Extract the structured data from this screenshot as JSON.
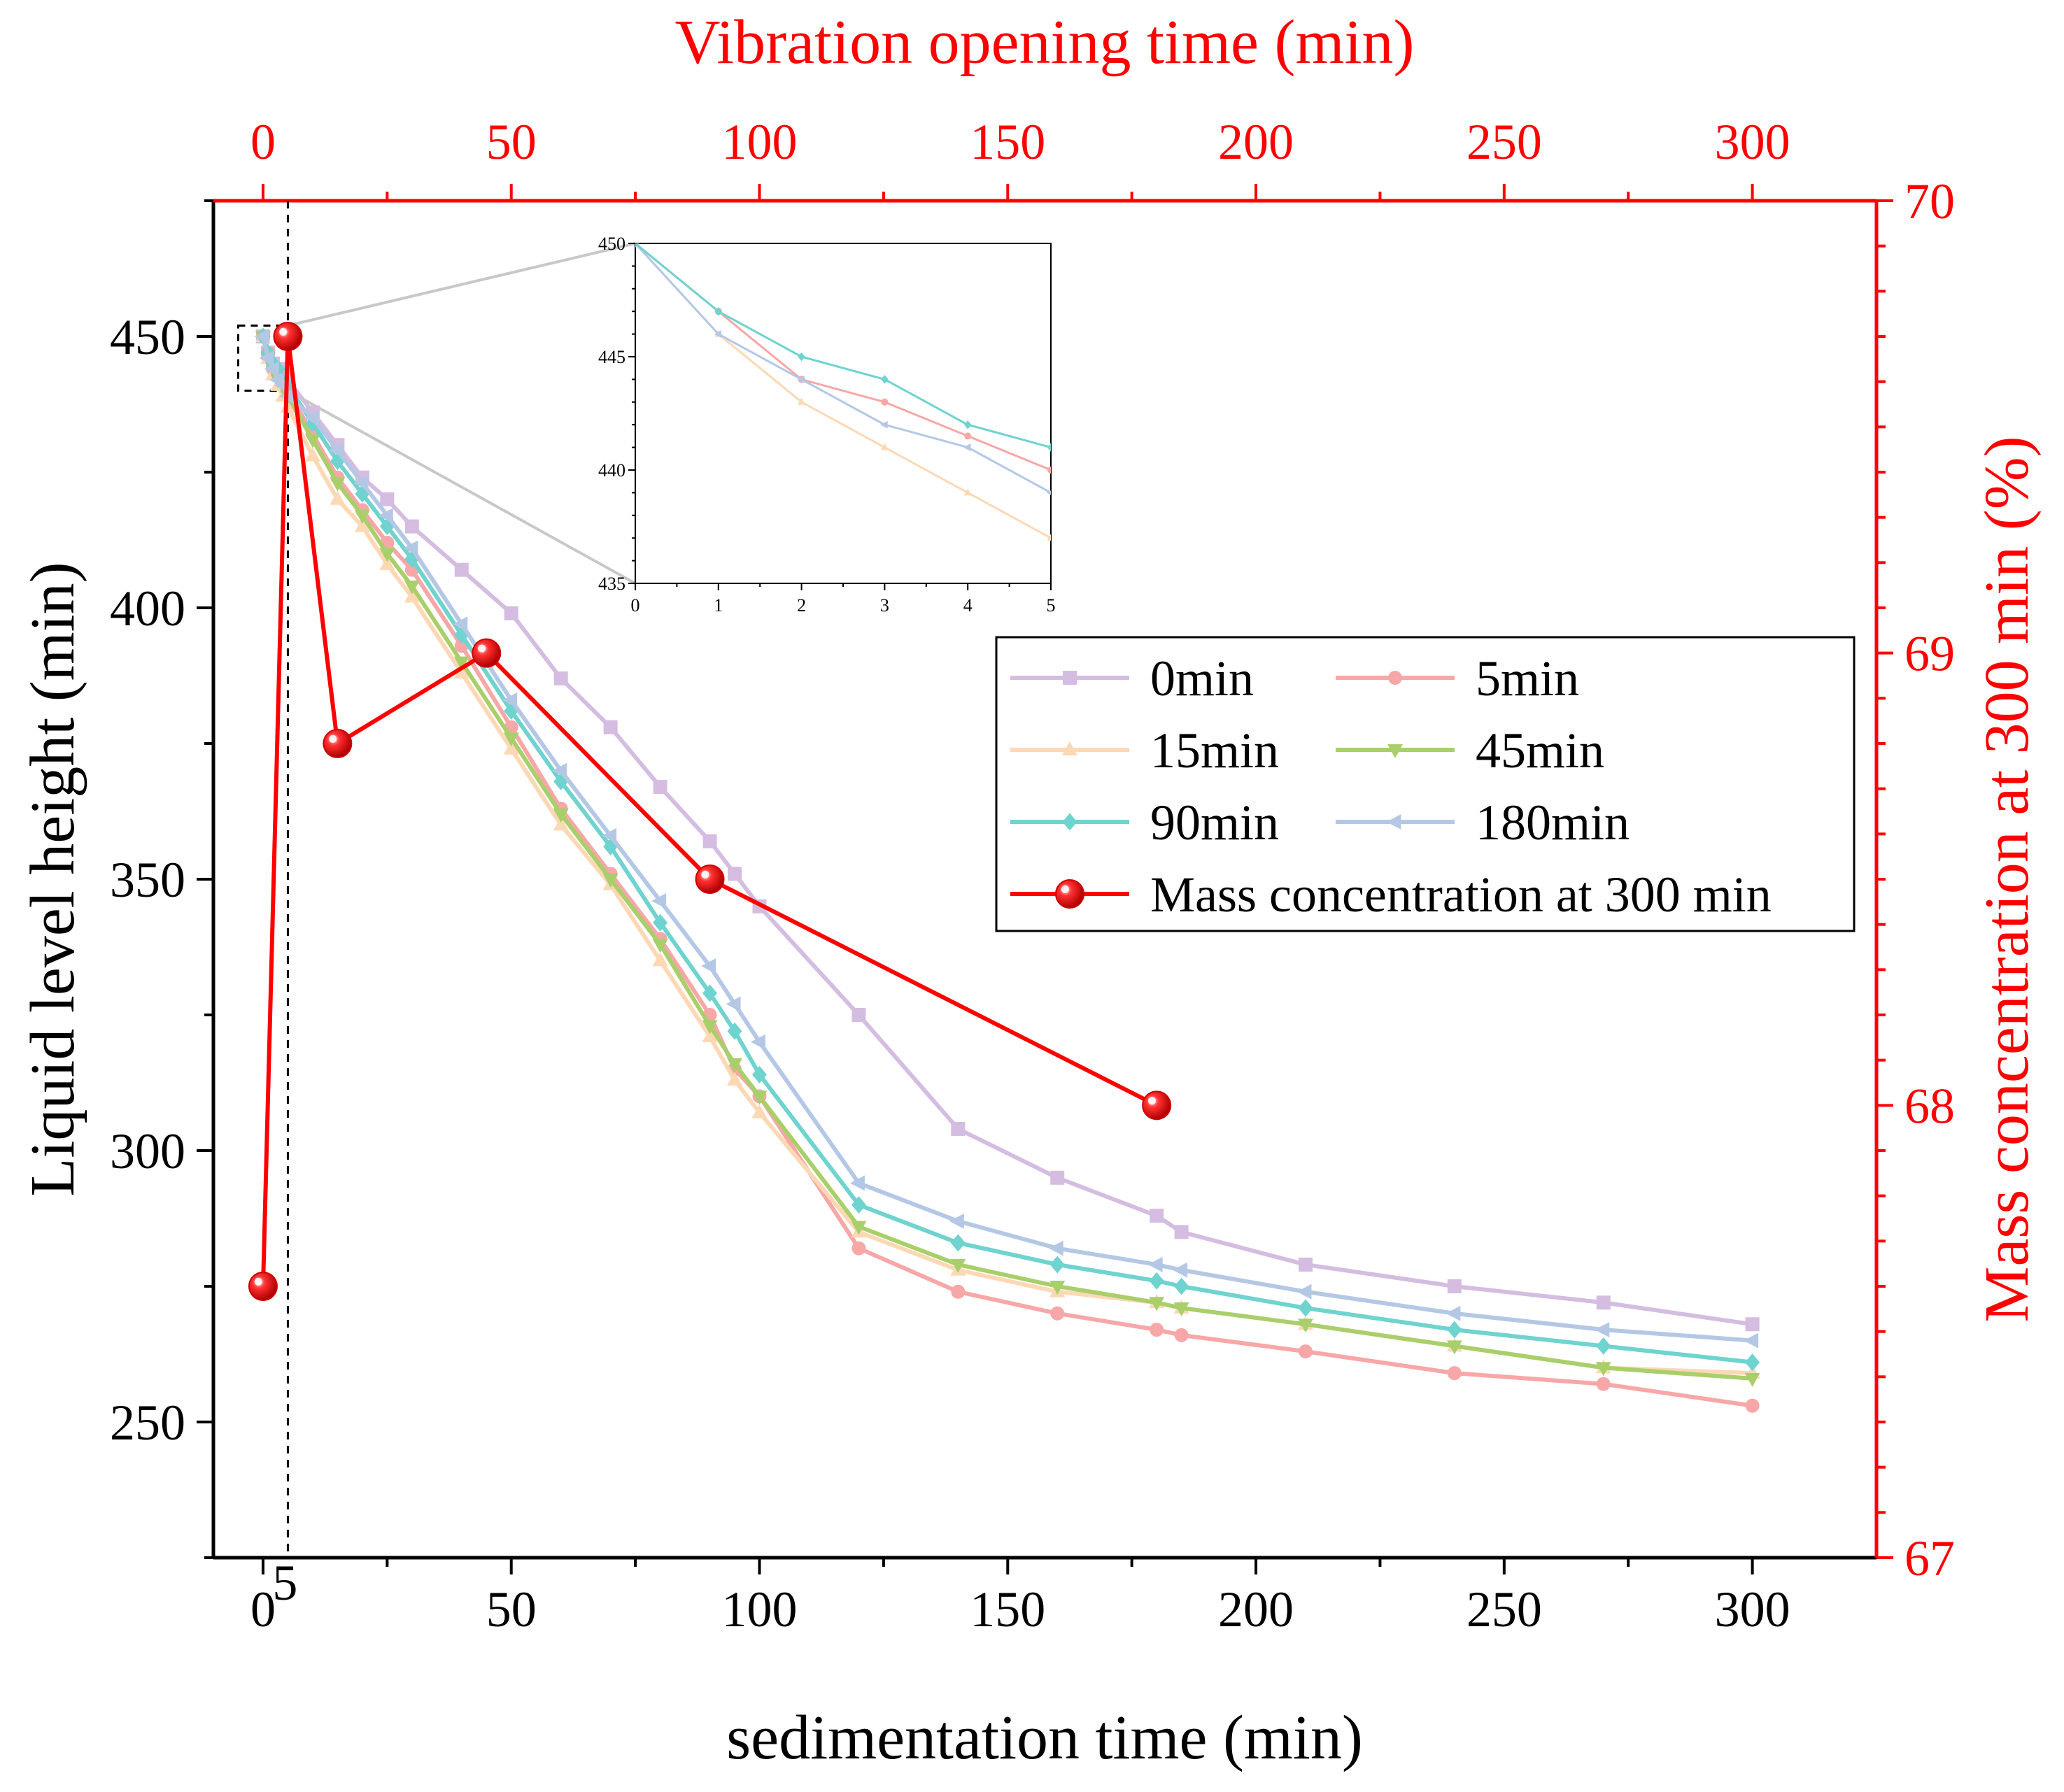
{
  "chart_data": {
    "type": "line",
    "colors": {
      "axis_black": "#000000",
      "axis_red": "#ff0000",
      "zoom_lines": "#c8c8c8",
      "0min": "#d4bde0",
      "5min": "#f7a7a7",
      "15min": "#fdd8b5",
      "45min": "#a9cf6b",
      "90min": "#6fd3cf",
      "180min": "#b4c8e6",
      "mass": "#ff0000"
    },
    "x_axis": {
      "label": "sedimentation time (min)",
      "range": [
        -10,
        325
      ],
      "ticks": [
        0,
        50,
        100,
        150,
        200,
        250,
        300
      ],
      "tick_labels": [
        "0",
        "50",
        "100",
        "150",
        "200",
        "250",
        "300"
      ],
      "extra_tick_label": "5",
      "extra_tick_value": 5,
      "dashed_line_at": 5
    },
    "y_axis_left": {
      "label": "Liquid level height (min)",
      "range": [
        225,
        475
      ],
      "ticks": [
        250,
        300,
        350,
        400,
        450
      ],
      "tick_labels": [
        "250",
        "300",
        "350",
        "400",
        "450"
      ]
    },
    "x_axis_top": {
      "label": "Vibration opening time (min)",
      "range": [
        -10,
        325
      ],
      "ticks": [
        0,
        50,
        100,
        150,
        200,
        250,
        300
      ],
      "tick_labels": [
        "0",
        "50",
        "100",
        "150",
        "200",
        "250",
        "300"
      ]
    },
    "y_axis_right": {
      "label": "Mass concentration at 300 min (%)",
      "range": [
        67,
        70
      ],
      "ticks": [
        67,
        68,
        69,
        70
      ],
      "tick_labels": [
        "67",
        "68",
        "69",
        "70"
      ]
    },
    "zoom_box": {
      "x_range": [
        -5,
        5
      ],
      "y_range": [
        440,
        452
      ]
    },
    "series": [
      {
        "name": "0min",
        "key": "0min",
        "marker": "square",
        "x": [
          0,
          1,
          2,
          3,
          4,
          5,
          10,
          15,
          20,
          25,
          30,
          40,
          50,
          60,
          70,
          80,
          90,
          95,
          100,
          120,
          140,
          160,
          180,
          185,
          210,
          240,
          270,
          300
        ],
        "y": [
          450,
          447,
          445,
          444,
          443,
          442,
          436,
          430,
          424,
          420,
          415,
          407,
          399,
          387,
          378,
          367,
          357,
          351,
          345,
          325,
          304,
          295,
          288,
          285,
          279,
          275,
          272,
          268
        ]
      },
      {
        "name": "5min",
        "key": "5min",
        "marker": "circle",
        "x": [
          0,
          1,
          2,
          3,
          4,
          5,
          10,
          15,
          20,
          25,
          30,
          40,
          50,
          60,
          70,
          80,
          90,
          95,
          100,
          120,
          140,
          160,
          180,
          185,
          210,
          240,
          270,
          300
        ],
        "y": [
          450,
          447,
          444,
          443,
          441.5,
          440,
          432,
          424,
          418,
          412,
          407,
          393,
          378,
          363,
          351,
          339,
          325,
          315,
          310,
          282,
          274,
          270,
          267,
          266,
          263,
          259,
          257,
          253
        ]
      },
      {
        "name": "15min",
        "key": "15min",
        "marker": "triangle-up",
        "x": [
          0,
          1,
          2,
          3,
          4,
          5,
          10,
          15,
          20,
          25,
          30,
          40,
          50,
          60,
          70,
          80,
          90,
          95,
          100,
          120,
          140,
          160,
          180,
          185,
          210,
          240,
          270,
          300
        ],
        "y": [
          450,
          446,
          443,
          441,
          439,
          437,
          428,
          420,
          415,
          408,
          402,
          388,
          374,
          360,
          349,
          335,
          321,
          313,
          307,
          285,
          278,
          274,
          272,
          271,
          268,
          264,
          260,
          259
        ]
      },
      {
        "name": "45min",
        "key": "45min",
        "marker": "triangle-down",
        "x": [
          0,
          1,
          2,
          3,
          4,
          5,
          10,
          15,
          20,
          25,
          30,
          40,
          50,
          60,
          70,
          80,
          90,
          95,
          100,
          120,
          140,
          160,
          180,
          185,
          210,
          240,
          270,
          300
        ],
        "y": [
          450,
          446,
          444,
          442,
          441,
          439,
          431,
          423,
          417,
          410,
          404,
          390,
          376,
          362,
          350,
          338,
          323,
          316,
          310,
          286,
          279,
          275,
          272,
          271,
          268,
          264,
          260,
          258
        ]
      },
      {
        "name": "90min",
        "key": "90min",
        "marker": "diamond",
        "x": [
          0,
          1,
          2,
          3,
          4,
          5,
          10,
          15,
          20,
          25,
          30,
          40,
          50,
          60,
          70,
          80,
          90,
          95,
          100,
          120,
          140,
          160,
          180,
          185,
          210,
          240,
          270,
          300
        ],
        "y": [
          450,
          447,
          445,
          444,
          442,
          441,
          434,
          427,
          421,
          415,
          409,
          395,
          381,
          368,
          356,
          342,
          329,
          322,
          314,
          290,
          283,
          279,
          276,
          275,
          271,
          267,
          264,
          261
        ]
      },
      {
        "name": "180min",
        "key": "180min",
        "marker": "triangle-left",
        "x": [
          0,
          1,
          2,
          3,
          4,
          5,
          10,
          15,
          20,
          25,
          30,
          40,
          50,
          60,
          70,
          80,
          90,
          95,
          100,
          120,
          140,
          160,
          180,
          185,
          210,
          240,
          270,
          300
        ],
        "y": [
          450,
          446,
          444,
          442,
          441,
          439,
          435,
          429,
          423,
          417,
          411,
          397,
          383,
          370,
          358,
          346,
          334,
          327,
          320,
          294,
          287,
          282,
          279,
          278,
          274,
          270,
          267,
          265
        ]
      },
      {
        "name": "Mass concentration at 300 min",
        "key": "mass",
        "marker": "sphere",
        "axis": "top-right",
        "x": [
          0,
          5,
          15,
          45,
          90,
          180
        ],
        "y": [
          67.6,
          69.7,
          68.8,
          69.0,
          68.5,
          68.0
        ]
      }
    ],
    "inset": {
      "x_range": [
        0,
        5
      ],
      "y_range": [
        435,
        450
      ],
      "x_ticks": [
        0,
        1,
        2,
        3,
        4,
        5
      ],
      "x_tick_labels": [
        "0",
        "1",
        "2",
        "3",
        "4",
        "5"
      ],
      "y_ticks": [
        435,
        440,
        445,
        450
      ],
      "y_tick_labels": [
        "435",
        "440",
        "445",
        "450"
      ],
      "series": [
        {
          "key": "5min",
          "x": [
            0,
            1,
            2,
            3,
            4,
            5
          ],
          "y": [
            450,
            447,
            444,
            443,
            441.5,
            440
          ]
        },
        {
          "key": "15min",
          "x": [
            0,
            1,
            2,
            3,
            4,
            5
          ],
          "y": [
            450,
            446,
            443,
            441,
            439,
            437
          ]
        },
        {
          "key": "180min",
          "x": [
            0,
            1,
            2,
            3,
            4,
            5
          ],
          "y": [
            450,
            446,
            444,
            442,
            441,
            439
          ]
        },
        {
          "key": "90min",
          "x": [
            0,
            1,
            2,
            3,
            4,
            5
          ],
          "y": [
            450,
            447,
            445,
            444,
            442,
            441
          ]
        }
      ]
    },
    "legend": {
      "placement": "center-right",
      "entries": [
        {
          "label": "0min",
          "key": "0min",
          "marker": "square"
        },
        {
          "label": "5min",
          "key": "5min",
          "marker": "circle"
        },
        {
          "label": "15min",
          "key": "15min",
          "marker": "triangle-up"
        },
        {
          "label": "45min",
          "key": "45min",
          "marker": "triangle-down"
        },
        {
          "label": "90min",
          "key": "90min",
          "marker": "diamond"
        },
        {
          "label": "180min",
          "key": "180min",
          "marker": "triangle-left"
        },
        {
          "label": "Mass concentration at 300 min",
          "key": "mass",
          "marker": "sphere"
        }
      ]
    }
  }
}
